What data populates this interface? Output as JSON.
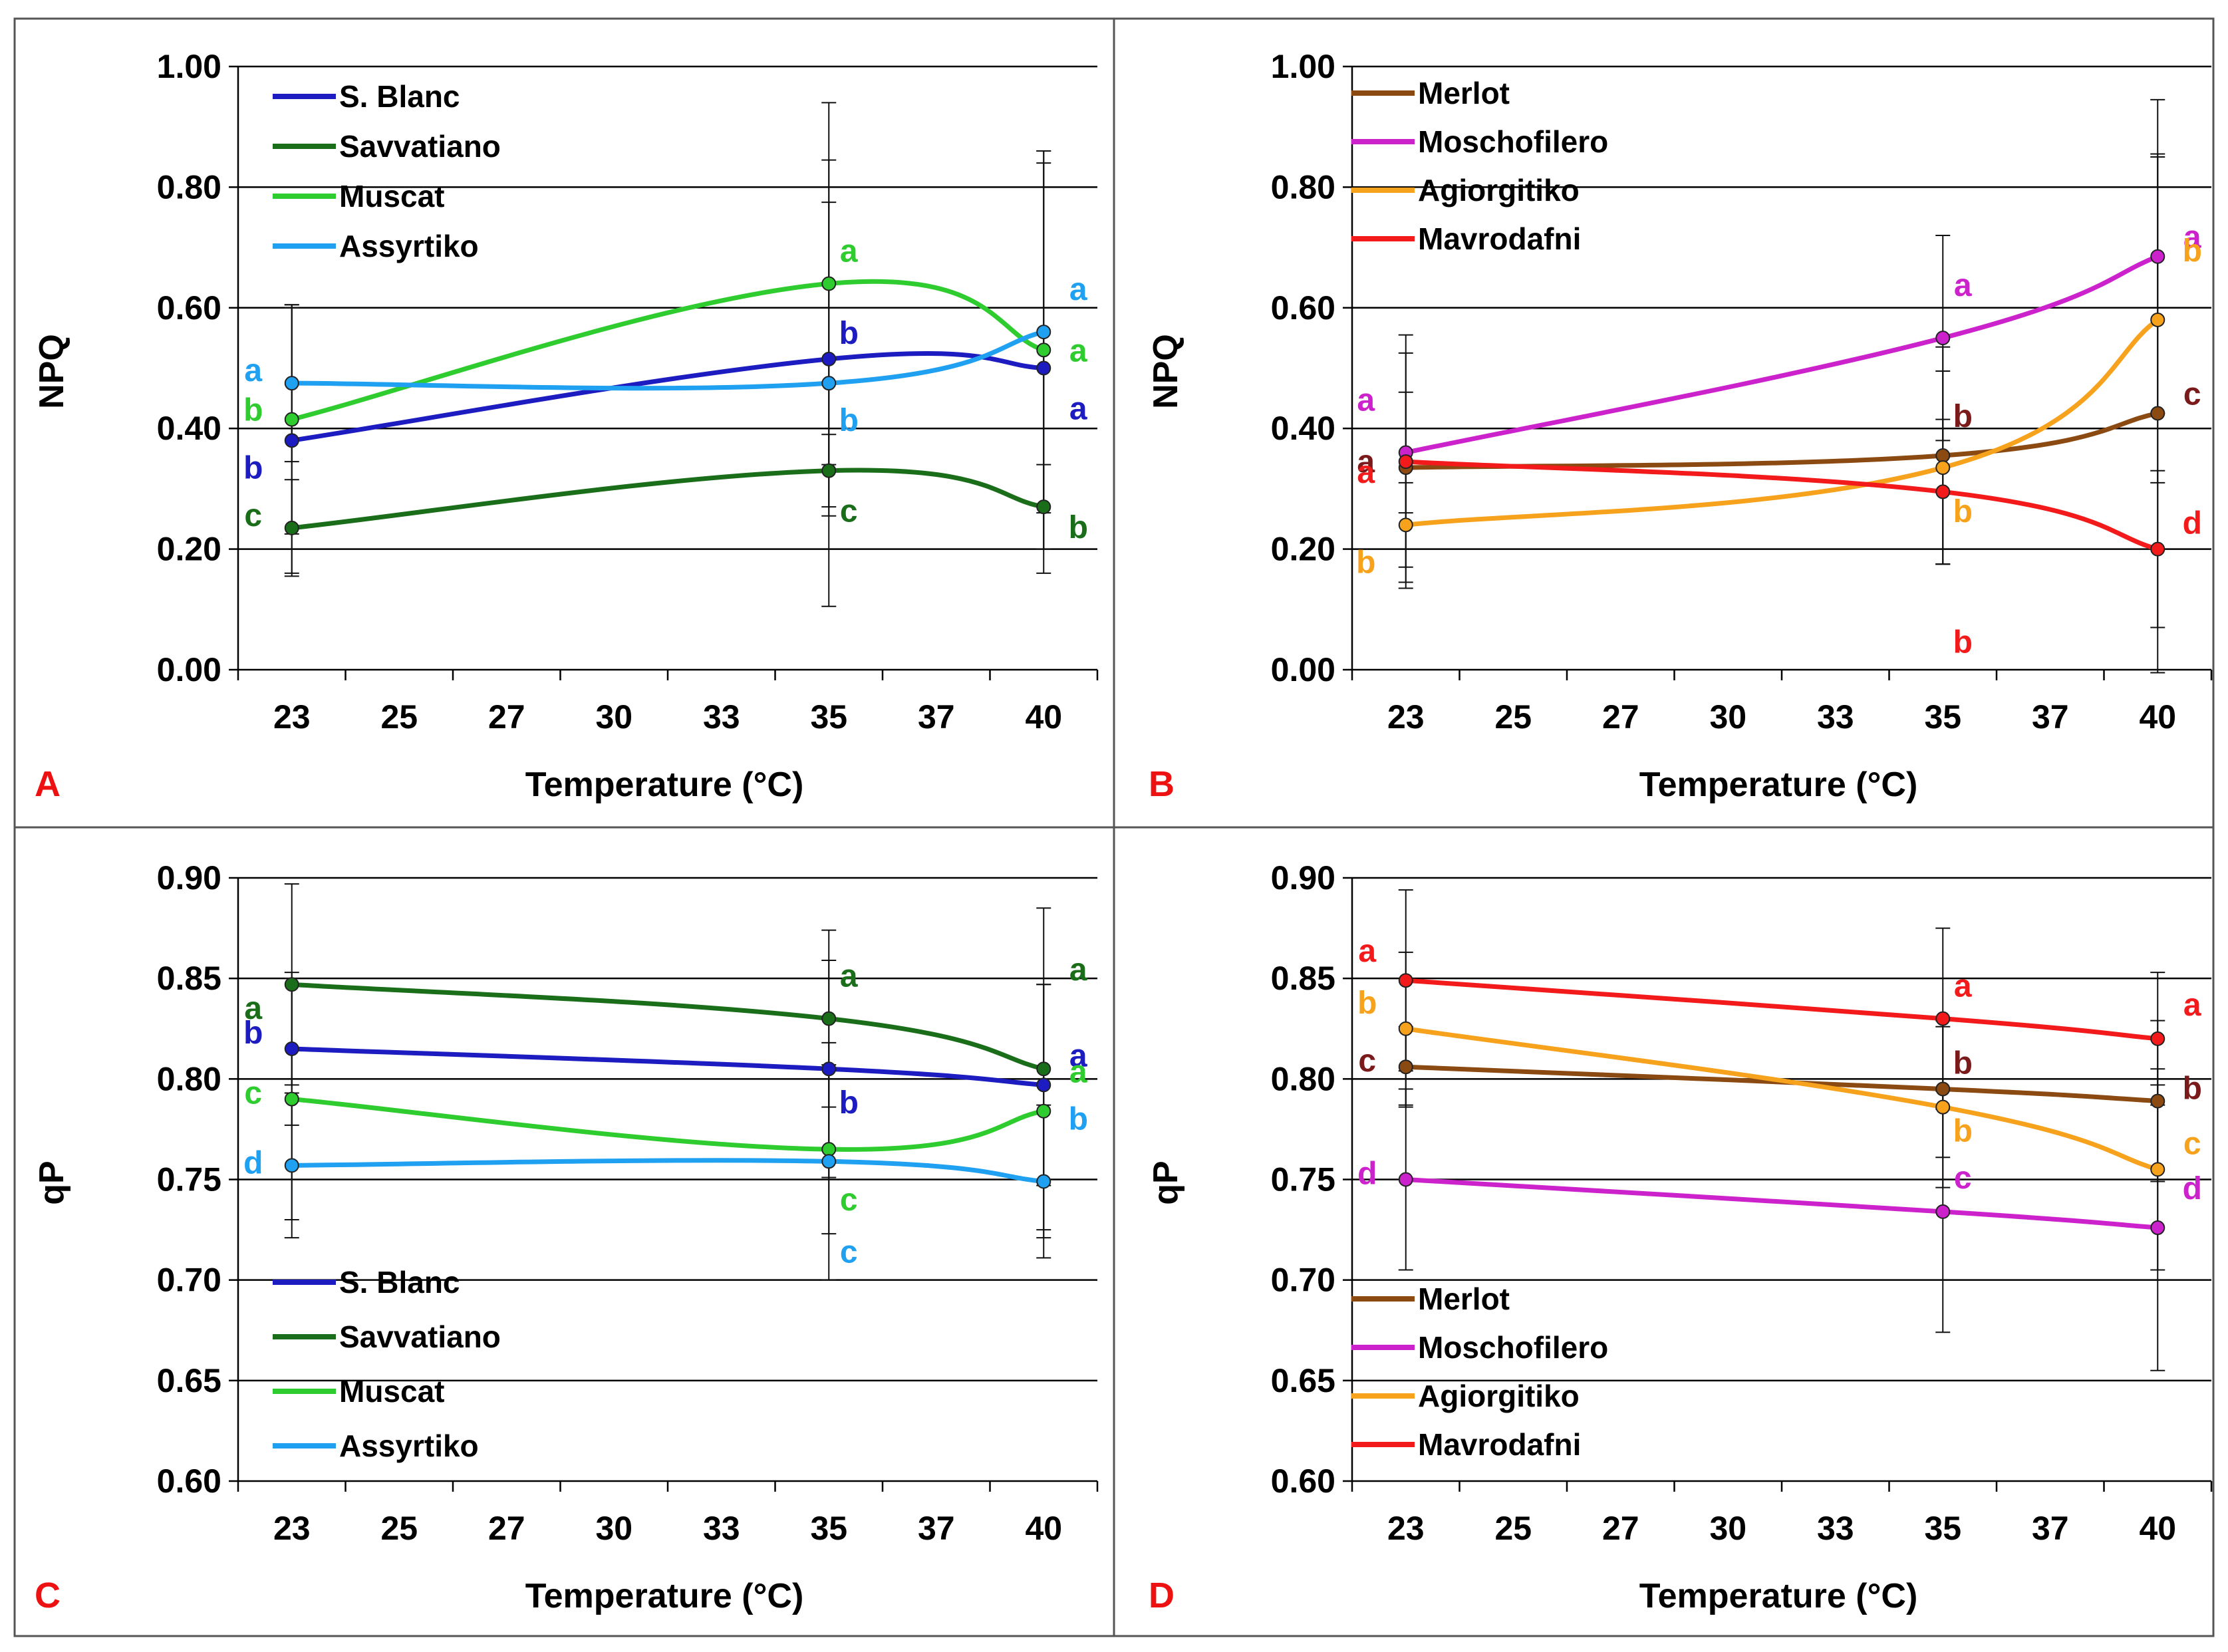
{
  "colors": {
    "S. Blanc": "#1c1cc0",
    "Savvatiano": "#1a6e1a",
    "Muscat": "#2ecc2e",
    "Assyrtiko": "#1fa0f0",
    "Merlot": "#8b4a12",
    "Moschofilero": "#cc22cc",
    "Agiorgitiko": "#f7a21c",
    "Mavrodafni": "#f21a1a",
    "panel_label": "#ee1111",
    "merlot_letter": "#7a1a1a"
  },
  "chart_data": [
    {
      "panel": "A",
      "type": "line",
      "xlabel": "Temperature (°C)",
      "ylabel": "NPQ",
      "ylim": [
        0,
        1
      ],
      "ytick_labels": [
        "0.00",
        "0.20",
        "0.40",
        "0.60",
        "0.80",
        "1.00"
      ],
      "categories": [
        "23",
        "25",
        "27",
        "30",
        "33",
        "35",
        "37",
        "40"
      ],
      "legend_position": "top-left",
      "series": [
        {
          "name": "S. Blanc",
          "x": [
            "23",
            "35",
            "40"
          ],
          "values": [
            0.38,
            0.515,
            0.5
          ],
          "errors": [
            0.22,
            0.26,
            0.34
          ],
          "letters": [
            "b",
            "b",
            "a"
          ]
        },
        {
          "name": "Savvatiano",
          "x": [
            "23",
            "35",
            "40"
          ],
          "values": [
            0.235,
            0.33,
            0.27
          ],
          "errors": [
            0.08,
            0.06,
            0.07
          ],
          "letters": [
            "c",
            "c",
            "b"
          ]
        },
        {
          "name": "Muscat",
          "x": [
            "23",
            "35",
            "40"
          ],
          "values": [
            0.415,
            0.64,
            0.53
          ],
          "errors": [
            0.19,
            0.3,
            0.33
          ],
          "letters": [
            "b",
            "a",
            "a"
          ]
        },
        {
          "name": "Assyrtiko",
          "x": [
            "23",
            "35",
            "40"
          ],
          "values": [
            0.475,
            0.475,
            0.56
          ],
          "errors": [
            0.13,
            0.37,
            0.3
          ],
          "letters": [
            "a",
            "b",
            "a"
          ]
        }
      ]
    },
    {
      "panel": "B",
      "type": "line",
      "xlabel": "Temperature (°C)",
      "ylabel": "NPQ",
      "ylim": [
        0,
        1
      ],
      "ytick_labels": [
        "0.00",
        "0.20",
        "0.40",
        "0.60",
        "0.80",
        "1.00"
      ],
      "categories": [
        "23",
        "25",
        "27",
        "30",
        "33",
        "35",
        "37",
        "40"
      ],
      "legend_position": "top-left",
      "series": [
        {
          "name": "Merlot",
          "x": [
            "23",
            "35",
            "40"
          ],
          "values": [
            0.335,
            0.355,
            0.425
          ],
          "errors": [
            0.19,
            0.18,
            0.43
          ],
          "letters": [
            "a",
            "b",
            "c"
          ]
        },
        {
          "name": "Moschofilero",
          "x": [
            "23",
            "35",
            "40"
          ],
          "values": [
            0.36,
            0.55,
            0.685
          ],
          "errors": [
            0.1,
            0.17,
            0.26
          ],
          "letters": [
            "a",
            "a",
            "a"
          ]
        },
        {
          "name": "Agiorgitiko",
          "x": [
            "23",
            "35",
            "40"
          ],
          "values": [
            0.24,
            0.335,
            0.58
          ],
          "errors": [
            0.07,
            0.16,
            0.27
          ],
          "letters": [
            "b",
            "b",
            "b"
          ]
        },
        {
          "name": "Mavrodafni",
          "x": [
            "23",
            "35",
            "40"
          ],
          "values": [
            0.345,
            0.295,
            0.2
          ],
          "errors": [
            0.21,
            0.12,
            0.13
          ],
          "letters": [
            "a",
            "b",
            "d"
          ]
        }
      ]
    },
    {
      "panel": "C",
      "type": "line",
      "xlabel": "Temperature (°C)",
      "ylabel": "qP",
      "ylim": [
        0.6,
        0.9
      ],
      "ytick_labels": [
        "0.60",
        "0.65",
        "0.70",
        "0.75",
        "0.80",
        "0.85",
        "0.90"
      ],
      "categories": [
        "23",
        "25",
        "27",
        "30",
        "33",
        "35",
        "37",
        "40"
      ],
      "legend_position": "bottom-left",
      "series": [
        {
          "name": "S. Blanc",
          "x": [
            "23",
            "35",
            "40"
          ],
          "values": [
            0.815,
            0.805,
            0.797
          ],
          "errors": [
            0.038,
            0.054,
            0.05
          ],
          "letters": [
            "b",
            "b",
            "a"
          ]
        },
        {
          "name": "Savvatiano",
          "x": [
            "23",
            "35",
            "40"
          ],
          "values": [
            0.847,
            0.83,
            0.805
          ],
          "errors": [
            0.05,
            0.044,
            0.08
          ],
          "letters": [
            "a",
            "a",
            "a"
          ]
        },
        {
          "name": "Muscat",
          "x": [
            "23",
            "35",
            "40"
          ],
          "values": [
            0.79,
            0.765,
            0.784
          ],
          "errors": [
            0.06,
            0.042,
            0.063
          ],
          "letters": [
            "c",
            "c",
            "a"
          ]
        },
        {
          "name": "Assyrtiko",
          "x": [
            "23",
            "35",
            "40"
          ],
          "values": [
            0.757,
            0.759,
            0.749
          ],
          "errors": [
            0.036,
            0.059,
            0.038
          ],
          "letters": [
            "d",
            "c",
            "b"
          ]
        }
      ]
    },
    {
      "panel": "D",
      "type": "line",
      "xlabel": "Temperature (°C)",
      "ylabel": "qP",
      "ylim": [
        0.6,
        0.9
      ],
      "ytick_labels": [
        "0.60",
        "0.65",
        "0.70",
        "0.75",
        "0.80",
        "0.85",
        "0.90"
      ],
      "categories": [
        "23",
        "25",
        "27",
        "30",
        "33",
        "35",
        "37",
        "40"
      ],
      "legend_position": "bottom-left",
      "series": [
        {
          "name": "Merlot",
          "x": [
            "23",
            "35",
            "40"
          ],
          "values": [
            0.806,
            0.795,
            0.789
          ],
          "errors": [
            0.02,
            0.034,
            0.04
          ],
          "letters": [
            "c",
            "b",
            "b"
          ]
        },
        {
          "name": "Moschofilero",
          "x": [
            "23",
            "35",
            "40"
          ],
          "values": [
            0.75,
            0.734,
            0.726
          ],
          "errors": [
            0.045,
            0.06,
            0.071
          ],
          "letters": [
            "d",
            "c",
            "d"
          ]
        },
        {
          "name": "Agiorgitiko",
          "x": [
            "23",
            "35",
            "40"
          ],
          "values": [
            0.825,
            0.786,
            0.755
          ],
          "errors": [
            0.038,
            0.04,
            0.05
          ],
          "letters": [
            "b",
            "b",
            "c"
          ]
        },
        {
          "name": "Mavrodafni",
          "x": [
            "23",
            "35",
            "40"
          ],
          "values": [
            0.849,
            0.83,
            0.82
          ],
          "errors": [
            0.045,
            0.045,
            0.033
          ],
          "letters": [
            "a",
            "a",
            "a"
          ]
        }
      ]
    }
  ]
}
